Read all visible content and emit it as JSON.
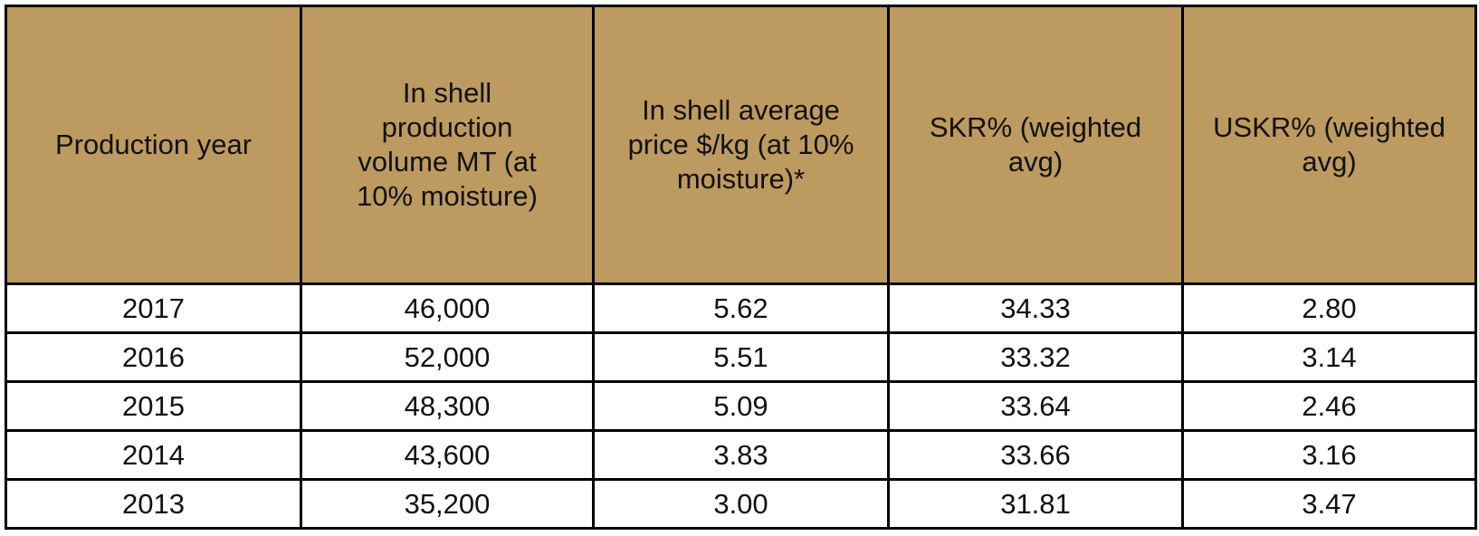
{
  "table": {
    "header": [
      "Production year",
      "In shell production volume MT (at 10% moisture)",
      "In shell average price $/kg (at 10% moisture)*",
      "SKR% (weighted avg)",
      "USKR% (weighted avg)"
    ],
    "rows": [
      [
        "2017",
        "46,000",
        "5.62",
        "34.33",
        "2.80"
      ],
      [
        "2016",
        "52,000",
        "5.51",
        "33.32",
        "3.14"
      ],
      [
        "2015",
        "48,300",
        "5.09",
        "33.64",
        "2.46"
      ],
      [
        "2014",
        "43,600",
        "3.83",
        "33.66",
        "3.16"
      ],
      [
        "2013",
        "35,200",
        "3.00",
        "31.81",
        "3.47"
      ]
    ]
  }
}
